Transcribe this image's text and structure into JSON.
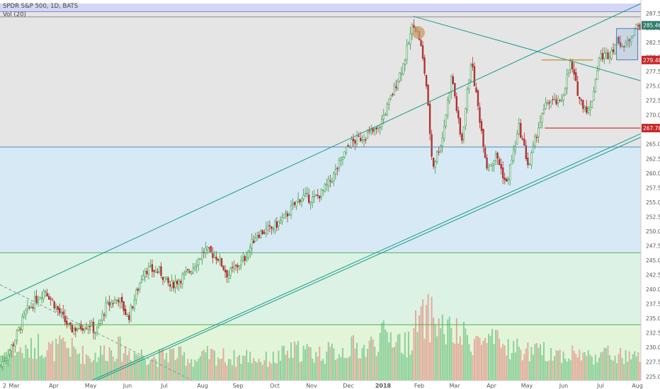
{
  "header": {
    "symbol_line": "SPDR S&P 500, 1D, BATS",
    "volume_line": "Vol (20)"
  },
  "chart_data": {
    "type": "candlestick",
    "y_axis": {
      "min": 224.3,
      "max": 289.2,
      "ticks": [
        225.0,
        227.5,
        230.0,
        232.5,
        235.0,
        237.5,
        240.0,
        242.5,
        245.0,
        247.5,
        250.0,
        252.5,
        255.0,
        257.5,
        260.0,
        262.5,
        265.0,
        267.5,
        270.0,
        272.5,
        275.0,
        277.5,
        280.0,
        282.5,
        285.0,
        287.5
      ]
    },
    "x_axis": {
      "labels": [
        "Mar",
        "Apr",
        "May",
        "Jun",
        "Jul",
        "Aug",
        "Sep",
        "Oct",
        "Nov",
        "Dec",
        "2018",
        "Feb",
        "Mar",
        "Apr",
        "May",
        "Jun",
        "Jul",
        "Aug"
      ]
    },
    "price_tags": [
      {
        "value": 285.46,
        "label": "285.46",
        "color": "#2e7d6e"
      },
      {
        "value": 279.48,
        "label": "279.48",
        "color": "#c62828"
      },
      {
        "value": 267.76,
        "label": "267.76",
        "color": "#c62828"
      }
    ],
    "zones": [
      {
        "from": 287.8,
        "to": 289.2,
        "color": "#d5d5f4"
      },
      {
        "from": 264.5,
        "to": 287.8,
        "color": "#e5e5e5"
      },
      {
        "from": 246.3,
        "to": 264.5,
        "color": "#d7e9f4"
      },
      {
        "from": 233.9,
        "to": 246.3,
        "color": "#dcf2e4"
      },
      {
        "from": 224.3,
        "to": 233.9,
        "color": "#e3f5d9"
      }
    ],
    "horizontal_lines": [
      {
        "value": 287.8,
        "color": "#7b8dd6"
      },
      {
        "value": 286.9,
        "color": "#8a8a8a"
      },
      {
        "value": 264.5,
        "color": "#4a90c2"
      },
      {
        "value": 246.3,
        "color": "#4caf7a"
      },
      {
        "value": 233.9,
        "color": "#4caf50"
      }
    ],
    "price_path": [
      [
        0.0,
        226.7
      ],
      [
        0.02,
        230.5
      ],
      [
        0.04,
        236.0
      ],
      [
        0.07,
        240.0
      ],
      [
        0.09,
        236.5
      ],
      [
        0.11,
        233.0
      ],
      [
        0.14,
        234.0
      ],
      [
        0.15,
        232.5
      ],
      [
        0.165,
        237.0
      ],
      [
        0.185,
        238.5
      ],
      [
        0.2,
        235.0
      ],
      [
        0.225,
        243.5
      ],
      [
        0.25,
        243.0
      ],
      [
        0.265,
        240.5
      ],
      [
        0.295,
        243.0
      ],
      [
        0.32,
        246.8
      ],
      [
        0.34,
        245.5
      ],
      [
        0.355,
        242.5
      ],
      [
        0.38,
        245.0
      ],
      [
        0.4,
        249.5
      ],
      [
        0.425,
        250.5
      ],
      [
        0.445,
        252.5
      ],
      [
        0.47,
        256.0
      ],
      [
        0.49,
        255.5
      ],
      [
        0.505,
        257.0
      ],
      [
        0.52,
        259.5
      ],
      [
        0.545,
        265.0
      ],
      [
        0.57,
        266.5
      ],
      [
        0.59,
        267.5
      ],
      [
        0.61,
        273.0
      ],
      [
        0.63,
        279.0
      ],
      [
        0.645,
        286.0
      ],
      [
        0.655,
        283.0
      ],
      [
        0.665,
        275.5
      ],
      [
        0.675,
        261.0
      ],
      [
        0.69,
        266.0
      ],
      [
        0.705,
        277.0
      ],
      [
        0.72,
        265.0
      ],
      [
        0.735,
        279.5
      ],
      [
        0.745,
        272.0
      ],
      [
        0.76,
        261.0
      ],
      [
        0.775,
        263.0
      ],
      [
        0.79,
        258.0
      ],
      [
        0.81,
        268.0
      ],
      [
        0.825,
        261.0
      ],
      [
        0.84,
        268.0
      ],
      [
        0.855,
        272.5
      ],
      [
        0.875,
        272.0
      ],
      [
        0.89,
        279.0
      ],
      [
        0.905,
        272.5
      ],
      [
        0.92,
        270.5
      ],
      [
        0.935,
        280.0
      ],
      [
        0.95,
        280.5
      ],
      [
        0.965,
        283.0
      ],
      [
        0.975,
        281.5
      ],
      [
        0.99,
        285.0
      ],
      [
        1.0,
        285.46
      ]
    ],
    "volume_path": [
      0.28,
      0.35,
      0.3,
      0.4,
      0.33,
      0.38,
      0.3,
      0.26,
      0.32,
      0.35,
      0.31,
      0.28,
      0.24,
      0.3,
      0.26,
      0.22,
      0.28,
      0.26,
      0.24,
      0.27,
      0.22,
      0.24,
      0.3,
      0.33,
      0.29,
      0.3,
      0.32,
      0.36,
      0.34,
      0.46,
      0.5,
      0.38,
      0.62,
      0.7,
      0.55,
      0.48,
      0.45,
      0.42,
      0.4,
      0.36,
      0.33,
      0.3,
      0.32,
      0.28,
      0.3,
      0.26,
      0.3,
      0.27,
      0.25,
      0.24
    ],
    "trend_lines": [
      {
        "x1": 0.0,
        "y1": 238.0,
        "x2": 1.0,
        "y2": 289.2,
        "color": "#1a9a8a"
      },
      {
        "x1": 0.143,
        "y1": 224.3,
        "x2": 1.0,
        "y2": 266.8,
        "color": "#1a9a8a"
      },
      {
        "x1": 0.15,
        "y1": 224.3,
        "x2": 1.0,
        "y2": 266.2,
        "color": "#1a9a8a"
      },
      {
        "x1": 0.645,
        "y1": 287.0,
        "x2": 1.0,
        "y2": 275.9,
        "color": "#1a9a8a"
      },
      {
        "x1": 0.0,
        "y1": 240.8,
        "x2": 0.3,
        "y2": 224.3,
        "color": "#7a9aa0",
        "dash": true
      }
    ],
    "segments": [
      {
        "x1": 0.845,
        "x2": 0.925,
        "y": 279.48,
        "color": "#b8860b"
      },
      {
        "x1": 0.85,
        "x2": 1.0,
        "y": 267.76,
        "color": "#c62828"
      }
    ],
    "rectangles": [
      {
        "x1": 0.962,
        "x2": 0.995,
        "y1": 279.5,
        "y2": 284.9,
        "color": "#4a7fbf"
      }
    ],
    "circles": [
      {
        "x": 0.653,
        "y": 284.2,
        "color": "#c79a6a"
      }
    ]
  }
}
